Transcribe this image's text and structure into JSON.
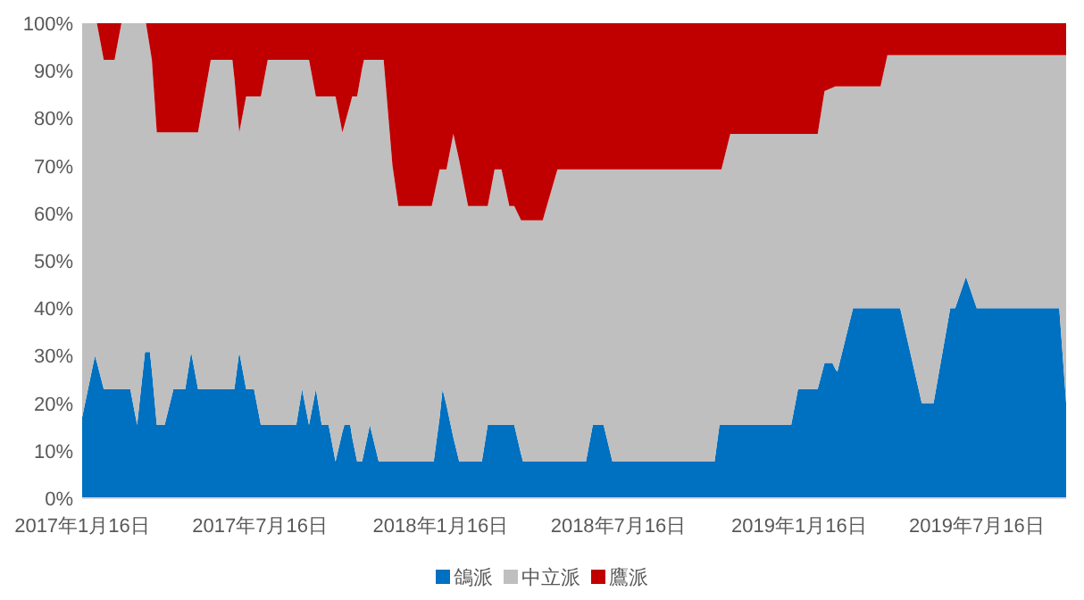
{
  "chart_data": {
    "type": "area",
    "stacked": true,
    "legend": "bottom",
    "grid": false,
    "x": [
      "2017-01-16",
      "2017-01-29",
      "2017-01-31",
      "2017-02-07",
      "2017-02-18",
      "2017-02-25",
      "2017-03-06",
      "2017-03-13",
      "2017-03-21",
      "2017-03-22",
      "2017-03-26",
      "2017-03-28",
      "2017-04-02",
      "2017-04-10",
      "2017-04-19",
      "2017-05-01",
      "2017-05-07",
      "2017-05-14",
      "2017-05-27",
      "2017-06-18",
      "2017-06-20",
      "2017-06-25",
      "2017-07-02",
      "2017-07-10",
      "2017-07-17",
      "2017-07-24",
      "2017-08-22",
      "2017-08-28",
      "2017-09-04",
      "2017-09-11",
      "2017-09-17",
      "2017-09-24",
      "2017-10-01",
      "2017-10-08",
      "2017-10-10",
      "2017-10-16",
      "2017-10-18",
      "2017-10-23",
      "2017-10-28",
      "2017-10-30",
      "2017-11-05",
      "2017-11-14",
      "2017-11-19",
      "2017-11-28",
      "2017-12-04",
      "2018-01-07",
      "2018-01-09",
      "2018-01-15",
      "2018-01-18",
      "2018-01-22",
      "2018-01-29",
      "2018-02-04",
      "2018-02-13",
      "2018-02-27",
      "2018-03-05",
      "2018-03-12",
      "2018-03-19",
      "2018-03-27",
      "2018-04-01",
      "2018-04-08",
      "2018-04-10",
      "2018-04-30",
      "2018-05-15",
      "2018-06-13",
      "2018-06-20",
      "2018-07-01",
      "2018-07-10",
      "2018-10-22",
      "2018-10-27",
      "2018-10-29",
      "2018-11-07",
      "2019-01-08",
      "2019-01-15",
      "2019-02-04",
      "2019-02-11",
      "2019-02-19",
      "2019-02-22",
      "2019-02-24",
      "2019-03-12",
      "2019-04-09",
      "2019-04-16",
      "2019-04-29",
      "2019-05-21",
      "2019-06-02",
      "2019-06-19",
      "2019-06-24",
      "2019-07-05",
      "2019-07-16",
      "2019-10-08",
      "2019-10-15"
    ],
    "series": [
      {
        "name": "鴿派",
        "color": "#0070c0",
        "values": [
          17,
          30,
          28.6,
          23,
          23,
          23,
          23,
          15.4,
          30.8,
          30.8,
          30.8,
          26.9,
          15.4,
          15.4,
          23,
          23,
          30.8,
          23,
          23,
          23,
          23,
          30.8,
          23,
          23,
          15.4,
          15.4,
          15.4,
          23,
          15.4,
          23,
          15.4,
          15.4,
          7.7,
          13.9,
          15.4,
          15.4,
          12.8,
          7.7,
          7.7,
          9.6,
          15.4,
          7.7,
          7.7,
          7.7,
          7.7,
          7.7,
          7.7,
          16.9,
          23,
          19.6,
          12.8,
          7.7,
          7.7,
          7.7,
          15.4,
          15.4,
          15.4,
          15.4,
          15.4,
          9.2,
          7.7,
          7.7,
          7.7,
          7.7,
          15.4,
          15.4,
          7.7,
          7.7,
          15.4,
          15.4,
          15.4,
          15.4,
          23,
          23,
          28.5,
          28.5,
          27.2,
          26.6,
          40,
          40,
          40,
          40,
          20,
          20,
          40,
          40,
          46.6,
          40,
          40,
          20
        ]
      },
      {
        "name": "中立派",
        "color": "#bfbfbf",
        "values": [
          83,
          70,
          71.4,
          69.3,
          69.3,
          77,
          77,
          84.6,
          69.2,
          69.2,
          64.1,
          65.4,
          61.6,
          61.6,
          54,
          54,
          46.2,
          54,
          69.3,
          69.3,
          65.5,
          46.2,
          61.6,
          61.6,
          69.2,
          76.9,
          76.9,
          69.3,
          76.9,
          61.6,
          69.2,
          69.2,
          76.9,
          63.1,
          63.1,
          67.6,
          71.8,
          76.9,
          82.7,
          82.7,
          76.9,
          84.6,
          84.6,
          62.3,
          53.8,
          53.8,
          55.7,
          52.3,
          46.2,
          49.6,
          63.9,
          63.4,
          53.8,
          53.8,
          46.1,
          53.8,
          53.8,
          46.1,
          46.1,
          49.3,
          50.8,
          50.8,
          61.5,
          61.5,
          53.8,
          53.8,
          61.5,
          61.5,
          53.8,
          53.8,
          61.3,
          61.3,
          53.7,
          53.7,
          57.2,
          57.9,
          59.5,
          60.1,
          46.7,
          46.7,
          53.3,
          53.3,
          73.3,
          73.3,
          53.3,
          53.3,
          46.7,
          53.3,
          53.3,
          73.3
        ]
      },
      {
        "name": "鷹派",
        "color": "#c00000",
        "values": [
          0,
          0,
          0,
          7.7,
          7.7,
          0,
          0,
          0,
          0,
          0,
          5.1,
          7.7,
          23,
          23,
          23,
          23,
          23,
          23,
          7.7,
          7.7,
          11.5,
          23,
          15.4,
          15.4,
          15.4,
          7.7,
          7.7,
          7.7,
          7.7,
          15.4,
          15.4,
          15.4,
          15.4,
          23,
          21.5,
          17,
          15.4,
          15.4,
          9.6,
          7.7,
          7.7,
          7.7,
          7.7,
          30,
          38.5,
          38.5,
          36.6,
          30.8,
          30.8,
          30.8,
          23.3,
          28.9,
          38.5,
          38.5,
          38.5,
          30.8,
          30.8,
          38.5,
          38.5,
          41.5,
          41.5,
          41.5,
          30.8,
          30.8,
          30.8,
          30.8,
          30.8,
          30.8,
          30.8,
          30.8,
          23.3,
          23.3,
          23.3,
          23.3,
          14.3,
          13.6,
          13.3,
          13.3,
          13.3,
          13.3,
          6.7,
          6.7,
          6.7,
          6.7,
          6.7,
          6.7,
          6.7,
          6.7,
          6.7,
          6.7
        ]
      }
    ],
    "xlim": [
      "2017-01-16",
      "2019-10-15"
    ],
    "xticks": [
      {
        "value": "2017-01-16",
        "label": "2017年1月16日"
      },
      {
        "value": "2017-07-16",
        "label": "2017年7月16日"
      },
      {
        "value": "2018-01-16",
        "label": "2018年1月16日"
      },
      {
        "value": "2018-07-16",
        "label": "2018年7月16日"
      },
      {
        "value": "2019-01-16",
        "label": "2019年1月16日"
      },
      {
        "value": "2019-07-16",
        "label": "2019年7月16日"
      }
    ],
    "ylim": [
      0,
      100
    ],
    "yticks": [
      {
        "value": 0,
        "label": "0%"
      },
      {
        "value": 10,
        "label": "10%"
      },
      {
        "value": 20,
        "label": "20%"
      },
      {
        "value": 30,
        "label": "30%"
      },
      {
        "value": 40,
        "label": "40%"
      },
      {
        "value": 50,
        "label": "50%"
      },
      {
        "value": 60,
        "label": "60%"
      },
      {
        "value": 70,
        "label": "70%"
      },
      {
        "value": 80,
        "label": "80%"
      },
      {
        "value": 90,
        "label": "90%"
      },
      {
        "value": 100,
        "label": "100%"
      }
    ]
  }
}
